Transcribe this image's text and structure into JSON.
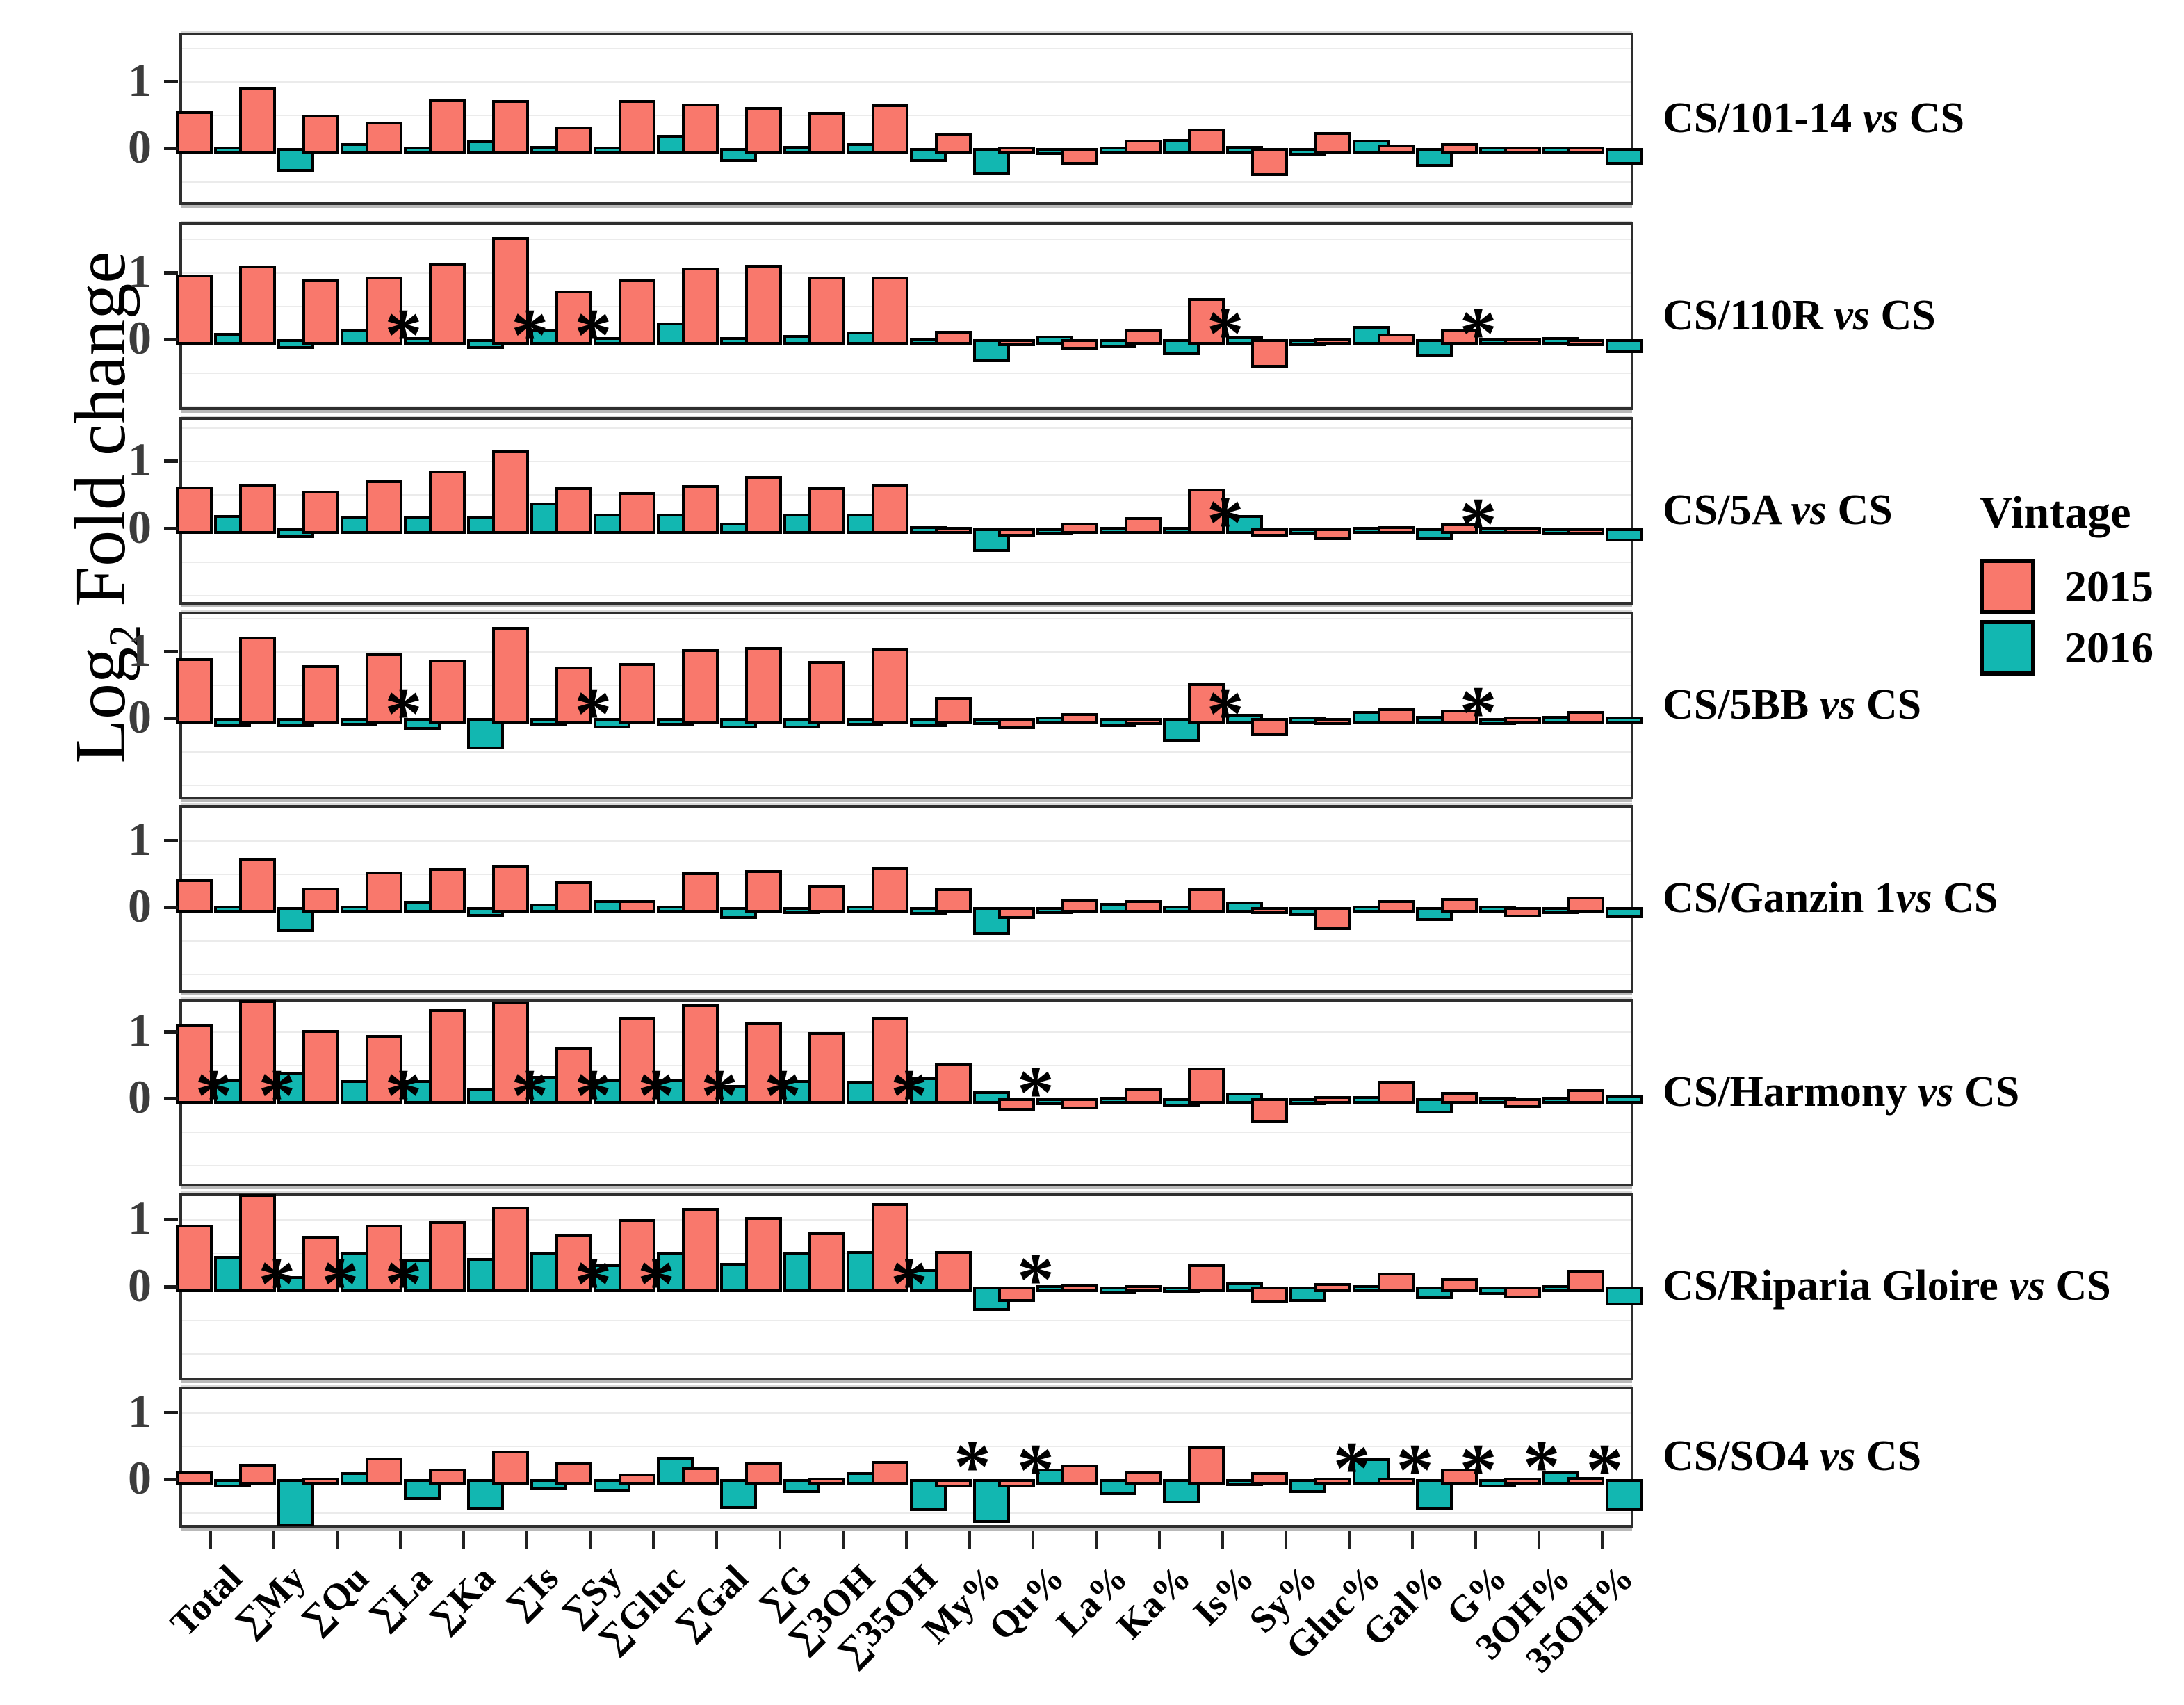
{
  "figure": {
    "y_axis": {
      "pre": "Log",
      "sub": "2",
      "post": " Fold change",
      "tick_labels": [
        "1",
        "0"
      ]
    },
    "legend": {
      "title": "Vintage",
      "entries": [
        {
          "label": "2015",
          "color": "#F9786C"
        },
        {
          "label": "2016",
          "color": "#12B7B1"
        }
      ]
    }
  },
  "chart_data": {
    "type": "bar",
    "title": "",
    "xlabel": "",
    "ylabel": "Log2 Fold change",
    "grid": "horizontal, 0.5 steps, light gray",
    "legend_position": "right",
    "ytick_values": [
      0,
      1
    ],
    "categories": [
      "Total",
      "∑My",
      "∑Qu",
      "∑La",
      "∑Ka",
      "∑Is",
      "∑Sy",
      "∑Gluc",
      "∑Gal",
      "∑G",
      "∑3OH",
      "∑35OH",
      "My%",
      "Qu%",
      "La%",
      "Ka%",
      "Is%",
      "Sy%",
      "Gluc%",
      "Gal%",
      "G%",
      "3OH%",
      "35OH%"
    ],
    "series_names": [
      "2015",
      "2016"
    ],
    "series_colors": [
      "#F9786C",
      "#12B7B1"
    ],
    "star_note": "* = significance marker drawn at listed y-position over the category pair",
    "panels": [
      {
        "label": {
          "pre": "CS/101-14 ",
          "vs": "vs",
          "post": " CS"
        },
        "ylim": [
          -0.85,
          1.73
        ],
        "v2015": [
          0.55,
          0.92,
          0.5,
          0.4,
          0.73,
          0.72,
          0.33,
          0.72,
          0.67,
          0.62,
          0.54,
          0.66,
          0.22,
          0.02,
          -0.16,
          0.13,
          0.29,
          -0.33,
          0.24,
          0.05,
          0.08,
          0.02,
          0.02
        ],
        "v2016": [
          0.02,
          -0.27,
          0.08,
          0.02,
          0.12,
          0.03,
          0.02,
          0.2,
          -0.12,
          0.03,
          0.08,
          -0.12,
          -0.32,
          -0.02,
          0.02,
          0.14,
          0.03,
          -0.03,
          0.13,
          -0.2,
          0.02,
          0.02,
          -0.16
        ],
        "stars": []
      },
      {
        "label": {
          "pre": "CS/110R ",
          "vs": "vs",
          "post": " CS"
        },
        "ylim": [
          -1.06,
          1.75
        ],
        "v2015": [
          0.97,
          1.1,
          0.91,
          0.94,
          1.15,
          1.53,
          0.73,
          0.91,
          1.07,
          1.12,
          0.94,
          0.94,
          0.13,
          -0.02,
          -0.07,
          0.16,
          0.62,
          -0.34,
          0.02,
          0.09,
          0.15,
          0.02,
          -0.02
        ],
        "v2016": [
          0.1,
          -0.06,
          0.15,
          0.03,
          -0.06,
          0.15,
          0.03,
          0.25,
          0.03,
          0.06,
          0.12,
          0.02,
          -0.26,
          0.05,
          -0.04,
          -0.15,
          0.04,
          -0.02,
          0.2,
          -0.17,
          0.02,
          0.03,
          -0.12
        ],
        "stars": [
          {
            "c": 3,
            "y": 0.28
          },
          {
            "c": 5,
            "y": 0.28
          },
          {
            "c": 6,
            "y": 0.28
          },
          {
            "c": 16,
            "y": 0.3
          },
          {
            "c": 20,
            "y": 0.3
          }
        ]
      },
      {
        "label": {
          "pre": "CS/5A ",
          "vs": "vs",
          "post": " CS"
        },
        "ylim": [
          -1.15,
          1.66
        ],
        "v2015": [
          0.62,
          0.66,
          0.56,
          0.71,
          0.86,
          1.16,
          0.61,
          0.54,
          0.64,
          0.78,
          0.61,
          0.66,
          0.02,
          -0.05,
          0.08,
          0.16,
          0.59,
          -0.05,
          -0.1,
          0.03,
          0.07,
          0.02,
          -0.02
        ],
        "v2016": [
          0.19,
          -0.07,
          0.18,
          0.18,
          0.17,
          0.38,
          0.21,
          0.21,
          0.08,
          0.21,
          0.21,
          0.03,
          -0.28,
          -0.02,
          0.02,
          0.02,
          0.19,
          -0.02,
          0.02,
          -0.1,
          0.02,
          -0.02,
          -0.12
        ],
        "stars": [
          {
            "c": 16,
            "y": 0.3
          },
          {
            "c": 20,
            "y": 0.28
          }
        ]
      },
      {
        "label": {
          "pre": "CS/5BB ",
          "vs": "vs",
          "post": " CS"
        },
        "ylim": [
          -1.22,
          1.59
        ],
        "v2015": [
          0.89,
          1.22,
          0.79,
          0.97,
          0.87,
          1.36,
          0.77,
          0.82,
          1.03,
          1.06,
          0.85,
          1.04,
          0.31,
          -0.09,
          0.07,
          -0.02,
          0.52,
          -0.19,
          -0.02,
          0.14,
          0.12,
          0.02,
          0.1
        ],
        "v2016": [
          -0.05,
          -0.05,
          -0.03,
          -0.1,
          -0.39,
          -0.03,
          -0.07,
          -0.03,
          -0.08,
          -0.08,
          -0.03,
          -0.05,
          -0.02,
          0.02,
          -0.05,
          -0.27,
          0.06,
          0.02,
          0.1,
          0.03,
          -0.02,
          0.03,
          0.02
        ],
        "stars": [
          {
            "c": 3,
            "y": 0.28
          },
          {
            "c": 6,
            "y": 0.28
          },
          {
            "c": 16,
            "y": 0.28
          },
          {
            "c": 20,
            "y": 0.3
          }
        ]
      },
      {
        "label": {
          "pre": "CS/Ganzin 1",
          "vs": "vs",
          "post": " CS"
        },
        "ylim": [
          -1.28,
          1.53
        ],
        "v2015": [
          0.42,
          0.73,
          0.29,
          0.53,
          0.58,
          0.62,
          0.39,
          0.1,
          0.52,
          0.55,
          0.33,
          0.59,
          0.28,
          -0.09,
          0.12,
          0.1,
          0.28,
          -0.02,
          -0.26,
          0.1,
          0.14,
          -0.07,
          0.16
        ],
        "v2016": [
          0.02,
          -0.29,
          0.02,
          0.09,
          -0.06,
          0.05,
          0.1,
          0.02,
          -0.09,
          -0.02,
          0.02,
          -0.03,
          -0.33,
          -0.02,
          0.06,
          0.02,
          0.08,
          -0.05,
          0.02,
          -0.12,
          0.02,
          -0.02,
          -0.08
        ],
        "stars": []
      },
      {
        "label": {
          "pre": "CS/Harmony ",
          "vs": "vs",
          "post": " CS"
        },
        "ylim": [
          -1.32,
          1.49
        ],
        "v2015": [
          1.12,
          1.47,
          1.02,
          0.95,
          1.33,
          1.45,
          0.76,
          1.22,
          1.41,
          1.15,
          0.99,
          1.22,
          0.52,
          -0.1,
          -0.08,
          0.15,
          0.46,
          -0.28,
          0.03,
          0.26,
          0.1,
          -0.06,
          0.14
        ],
        "v2016": [
          0.28,
          0.4,
          0.27,
          0.27,
          0.16,
          0.34,
          0.28,
          0.29,
          0.2,
          0.27,
          0.26,
          0.31,
          0.11,
          -0.02,
          0.02,
          -0.05,
          0.09,
          -0.02,
          0.03,
          -0.14,
          0.02,
          0.02,
          0.05
        ],
        "stars": [
          {
            "c": 0,
            "y": 0.26
          },
          {
            "c": 1,
            "y": 0.26
          },
          {
            "c": 3,
            "y": 0.26
          },
          {
            "c": 5,
            "y": 0.26
          },
          {
            "c": 6,
            "y": 0.26
          },
          {
            "c": 7,
            "y": 0.26
          },
          {
            "c": 8,
            "y": 0.26
          },
          {
            "c": 9,
            "y": 0.26
          },
          {
            "c": 11,
            "y": 0.26
          },
          {
            "c": 13,
            "y": 0.3
          }
        ]
      },
      {
        "label": {
          "pre": "CS/Riparia Gloire ",
          "vs": "vs",
          "post": " CS"
        },
        "ylim": [
          -1.41,
          1.4
        ],
        "v2015": [
          0.92,
          1.38,
          0.76,
          0.92,
          0.97,
          1.19,
          0.78,
          1.0,
          1.17,
          1.04,
          0.81,
          1.24,
          0.53,
          -0.15,
          0.03,
          0.02,
          0.33,
          -0.17,
          0.05,
          0.2,
          0.12,
          -0.1,
          0.24
        ],
        "v2016": [
          0.45,
          0.15,
          0.52,
          0.41,
          0.42,
          0.52,
          0.33,
          0.52,
          0.35,
          0.52,
          0.53,
          0.26,
          -0.29,
          0.02,
          -0.03,
          -0.02,
          0.06,
          -0.15,
          0.02,
          -0.11,
          -0.05,
          0.02,
          -0.2
        ],
        "stars": [
          {
            "c": 1,
            "y": 0.26
          },
          {
            "c": 2,
            "y": 0.26
          },
          {
            "c": 3,
            "y": 0.26
          },
          {
            "c": 6,
            "y": 0.26
          },
          {
            "c": 7,
            "y": 0.26
          },
          {
            "c": 11,
            "y": 0.26
          },
          {
            "c": 13,
            "y": 0.32
          }
        ]
      },
      {
        "label": {
          "pre": "CS/SO4 ",
          "vs": "vs",
          "post": " CS"
        },
        "ylim": [
          -0.73,
          1.38
        ],
        "v2015": [
          0.11,
          0.22,
          0.02,
          0.32,
          0.15,
          0.42,
          0.25,
          0.08,
          0.17,
          0.26,
          0.02,
          0.27,
          -0.05,
          -0.05,
          0.21,
          0.11,
          0.48,
          0.1,
          0.02,
          0.02,
          0.15,
          0.02,
          0.03
        ],
        "v2016": [
          -0.05,
          -0.63,
          0.1,
          -0.23,
          -0.38,
          -0.08,
          -0.11,
          0.33,
          -0.37,
          -0.13,
          0.1,
          -0.4,
          -0.58,
          0.15,
          -0.16,
          -0.28,
          -0.03,
          -0.13,
          0.31,
          -0.38,
          -0.05,
          0.11,
          -0.4
        ],
        "stars": [
          {
            "c": 12,
            "y": 0.4
          },
          {
            "c": 13,
            "y": 0.35
          },
          {
            "c": 18,
            "y": 0.38
          },
          {
            "c": 19,
            "y": 0.35
          },
          {
            "c": 20,
            "y": 0.35
          },
          {
            "c": 21,
            "y": 0.4
          },
          {
            "c": 22,
            "y": 0.35
          }
        ]
      }
    ]
  }
}
